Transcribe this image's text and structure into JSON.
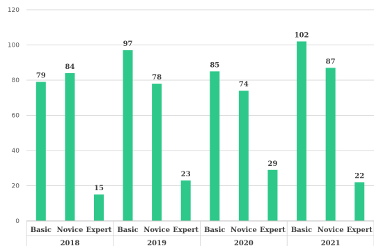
{
  "chart_data": {
    "type": "bar",
    "groups": [
      {
        "label": "2018",
        "categories": [
          "Basic",
          "Novice",
          "Expert"
        ],
        "values": [
          79,
          84,
          15
        ]
      },
      {
        "label": "2019",
        "categories": [
          "Basic",
          "Novice",
          "Expert"
        ],
        "values": [
          97,
          78,
          23
        ]
      },
      {
        "label": "2020",
        "categories": [
          "Basic",
          "Novice",
          "Expert"
        ],
        "values": [
          85,
          74,
          29
        ]
      },
      {
        "label": "2021",
        "categories": [
          "Basic",
          "Novice",
          "Expert"
        ],
        "values": [
          102,
          87,
          22
        ]
      }
    ],
    "yticks": [
      "0",
      "20",
      "40",
      "60",
      "80",
      "100",
      "120"
    ],
    "ylim": [
      0,
      120
    ],
    "grid": true,
    "legend": "none",
    "bar_color": "#2ec98a",
    "data_labels": true
  }
}
